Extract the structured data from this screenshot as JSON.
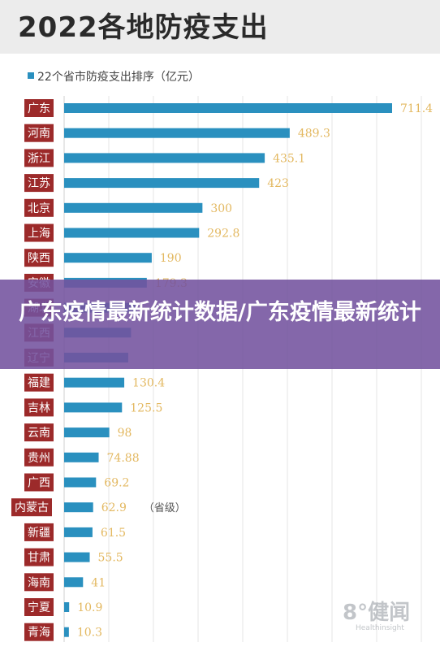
{
  "header": {
    "title": "2022各地防疫支出"
  },
  "overlay": {
    "headline": "广东疫情最新统计数据/广东疫情最新统计"
  },
  "watermark": {
    "logo": "8°健闻",
    "sub": "Healthinsight"
  },
  "colors": {
    "bar": "#2a90bf",
    "label_bg": "#9c2a2a",
    "value": "#e3b860",
    "overlay": "#73529e"
  },
  "chart_data": {
    "type": "bar",
    "orientation": "horizontal",
    "title": "2022各地防疫支出",
    "legend": "22个省市防疫支出排序（亿元）",
    "annotation": "（省级）",
    "annotation_category": "内蒙古",
    "categories": [
      "广东",
      "河南",
      "浙江",
      "江苏",
      "北京",
      "上海",
      "陕西",
      "安徽",
      "湖北",
      "江西",
      "辽宁",
      "福建",
      "吉林",
      "云南",
      "贵州",
      "广西",
      "内蒙古",
      "新疆",
      "甘肃",
      "海南",
      "宁夏",
      "青海"
    ],
    "value_labels": [
      "711.4",
      "489.3",
      "435.1",
      "423",
      "300",
      "292.8",
      "190",
      "179.3",
      "",
      "",
      "",
      "130.4",
      "125.5",
      "98",
      "74.88",
      "69.2",
      "62.9",
      "61.5",
      "55.5",
      "41",
      "10.9",
      "10.3"
    ],
    "values": [
      711.4,
      489.3,
      435.1,
      423,
      300,
      292.8,
      190,
      179.3,
      158,
      145,
      139,
      130.4,
      125.5,
      98,
      74.88,
      69.2,
      62.9,
      61.5,
      55.5,
      41,
      10.9,
      10.3
    ],
    "xlim": [
      0,
      711.4
    ],
    "grid": "vertical"
  }
}
